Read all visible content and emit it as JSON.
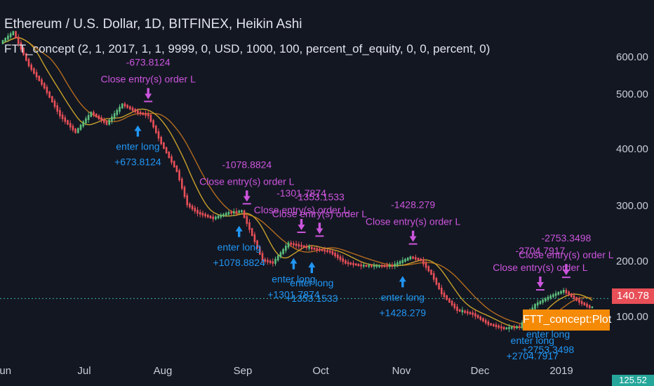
{
  "header": {
    "title": "Ethereum / U.S. Dollar, 1D, BITFINEX, Heikin Ashi",
    "subtitle": "FTT_concept (2, 1, 2017, 1, 1, 9999, 0, USD, 1000, 100, percent_of_equity, 0, 0, percent, 0)"
  },
  "price_axis": {
    "ticks": [
      "600.00",
      "500.00",
      "400.00",
      "300.00",
      "200.00",
      "100.00"
    ],
    "last_price": "140.78",
    "extra_price": "125.52"
  },
  "plot_label": "FTT_concept:Plot",
  "colors": {
    "background": "#131722",
    "candle_up": "#5cbf7d",
    "candle_down": "#e84f57",
    "ma_fast": "#c8a12a",
    "ma_slow": "#b36b1e",
    "entry_marker": "#2196f3",
    "exit_marker": "#cc55dd",
    "last_price_bg": "#e84f57",
    "plot_label_bg": "#f58a07"
  },
  "chart_data": {
    "type": "candlestick",
    "x_axis_labels": [
      "Jun",
      "Jul",
      "Aug",
      "Sep",
      "Oct",
      "Nov",
      "Dec",
      "2019"
    ],
    "y_ticks": [
      100,
      200,
      300,
      400,
      500,
      600
    ],
    "ylim": [
      60,
      680
    ],
    "price_path": [
      [
        "2018-06-01",
        600
      ],
      [
        "2018-06-06",
        620
      ],
      [
        "2018-06-12",
        560
      ],
      [
        "2018-06-18",
        520
      ],
      [
        "2018-06-24",
        470
      ],
      [
        "2018-06-30",
        440
      ],
      [
        "2018-07-06",
        475
      ],
      [
        "2018-07-12",
        455
      ],
      [
        "2018-07-18",
        490
      ],
      [
        "2018-07-24",
        475
      ],
      [
        "2018-07-28",
        470
      ],
      [
        "2018-08-02",
        420
      ],
      [
        "2018-08-08",
        370
      ],
      [
        "2018-08-12",
        310
      ],
      [
        "2018-08-16",
        295
      ],
      [
        "2018-08-22",
        285
      ],
      [
        "2018-08-28",
        295
      ],
      [
        "2018-09-02",
        298
      ],
      [
        "2018-09-06",
        255
      ],
      [
        "2018-09-10",
        210
      ],
      [
        "2018-09-14",
        205
      ],
      [
        "2018-09-20",
        240
      ],
      [
        "2018-09-25",
        235
      ],
      [
        "2018-09-30",
        230
      ],
      [
        "2018-10-06",
        225
      ],
      [
        "2018-10-12",
        205
      ],
      [
        "2018-10-18",
        200
      ],
      [
        "2018-10-24",
        199
      ],
      [
        "2018-10-30",
        200
      ],
      [
        "2018-11-06",
        215
      ],
      [
        "2018-11-10",
        210
      ],
      [
        "2018-11-14",
        185
      ],
      [
        "2018-11-18",
        150
      ],
      [
        "2018-11-24",
        120
      ],
      [
        "2018-11-30",
        113
      ],
      [
        "2018-12-06",
        95
      ],
      [
        "2018-12-12",
        87
      ],
      [
        "2018-12-18",
        90
      ],
      [
        "2018-12-24",
        130
      ],
      [
        "2018-12-30",
        145
      ],
      [
        "2019-01-04",
        155
      ],
      [
        "2019-01-10",
        135
      ],
      [
        "2019-01-14",
        125
      ]
    ],
    "trades": [
      {
        "type": "entry",
        "date": "2018-07-23",
        "label": "enter long",
        "value": "+673.8124"
      },
      {
        "type": "exit",
        "date": "2018-07-27",
        "label": "Close entry(s) order L",
        "value": "-673.8124"
      },
      {
        "type": "entry",
        "date": "2018-08-31",
        "label": "enter long",
        "value": "+1078.8824"
      },
      {
        "type": "exit",
        "date": "2018-09-03",
        "label": "Close entry(s) order L",
        "value": "-1078.8824"
      },
      {
        "type": "entry",
        "date": "2018-09-21",
        "label": "enter long",
        "value": "+1301.7874"
      },
      {
        "type": "exit",
        "date": "2018-09-24",
        "label": "Close entry(s) order L",
        "value": "-1301.7874"
      },
      {
        "type": "entry",
        "date": "2018-09-28",
        "label": "enter long",
        "value": "+1353.1533"
      },
      {
        "type": "exit",
        "date": "2018-10-01",
        "label": "Close entry(s) order L",
        "value": "-1353.1533"
      },
      {
        "type": "entry",
        "date": "2018-11-02",
        "label": "enter long",
        "value": "+1428.279"
      },
      {
        "type": "exit",
        "date": "2018-11-06",
        "label": "Close entry(s) order L",
        "value": "-1428.279"
      },
      {
        "type": "entry",
        "date": "2018-12-22",
        "label": "enter long",
        "value": "+2704.7917"
      },
      {
        "type": "exit",
        "date": "2018-12-25",
        "label": "Close entry(s) order L",
        "value": "-2704.7917"
      },
      {
        "type": "entry",
        "date": "2018-12-28",
        "label": "enter long",
        "value": "+2753.3498"
      },
      {
        "type": "exit",
        "date": "2019-01-04",
        "label": "Close entry(s) order L",
        "value": "-2753.3498"
      }
    ],
    "last_price": 140.78,
    "grid": false
  }
}
